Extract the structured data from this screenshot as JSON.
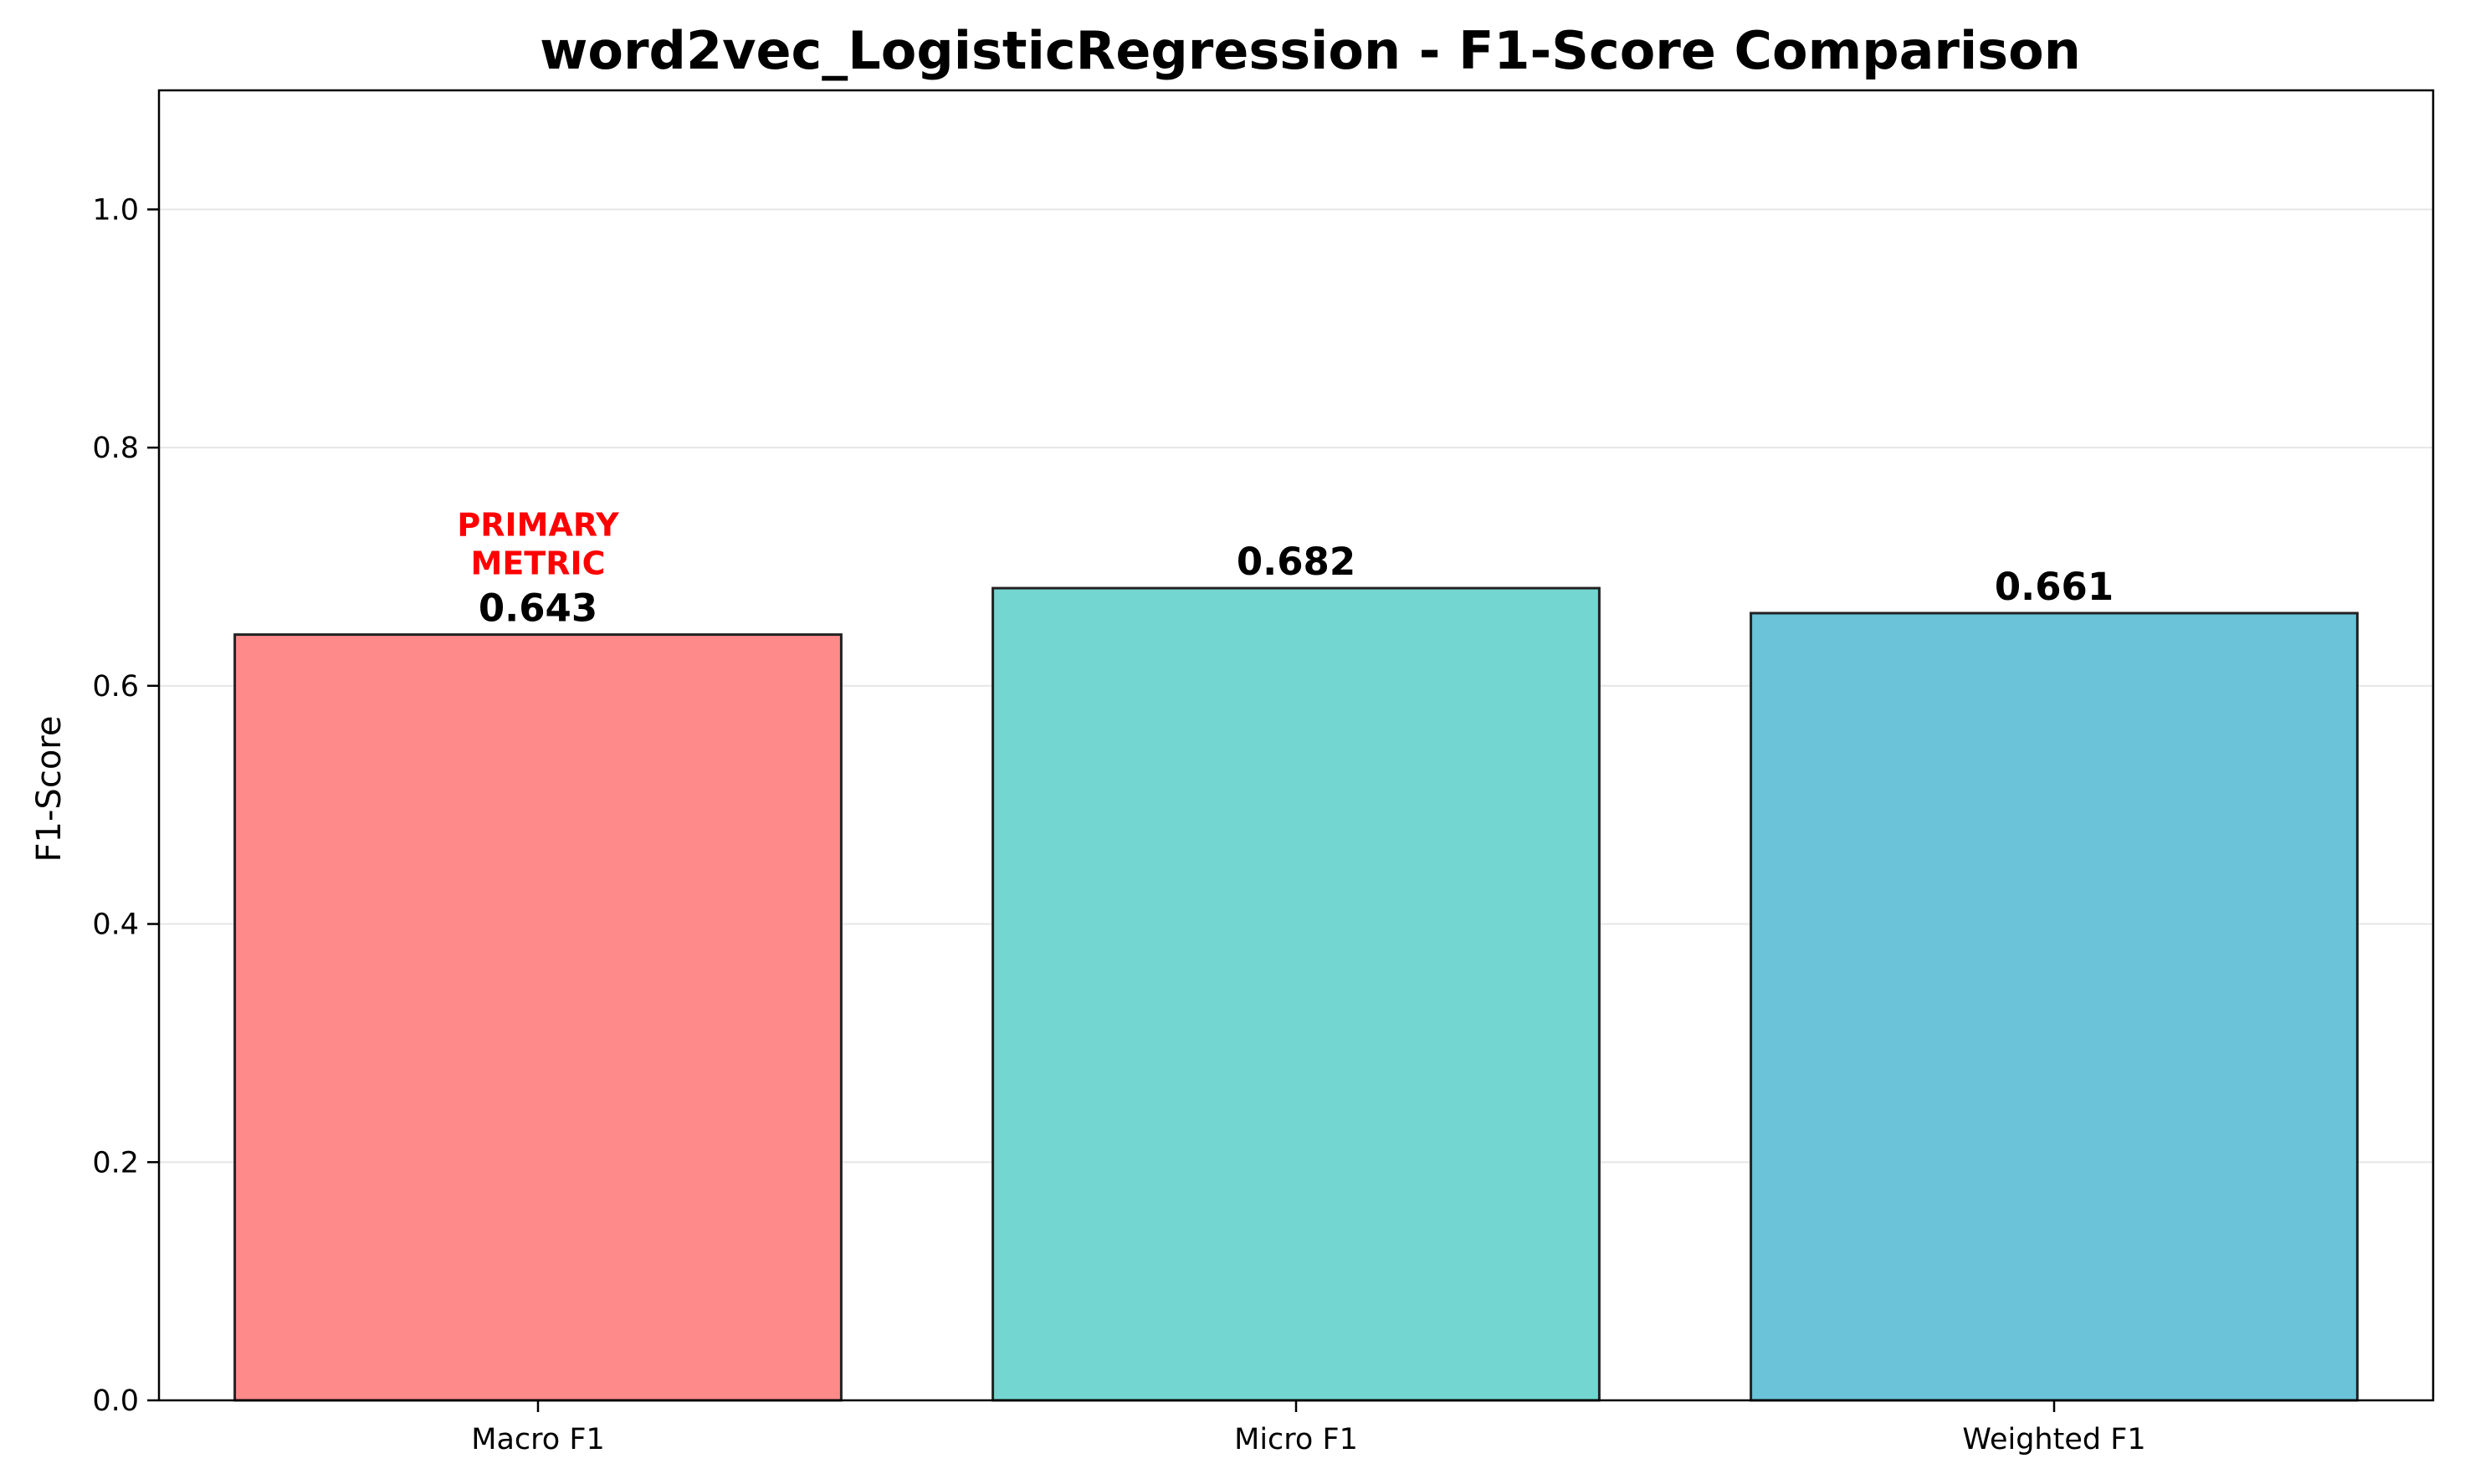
{
  "chart_data": {
    "type": "bar",
    "title": "word2vec_LogisticRegression - F1-Score Comparison",
    "xlabel": "",
    "ylabel": "F1-Score",
    "categories": [
      "Macro F1",
      "Micro F1",
      "Weighted F1"
    ],
    "values": [
      0.643,
      0.682,
      0.661
    ],
    "value_labels": [
      "0.643",
      "0.682",
      "0.661"
    ],
    "colors": [
      "#ff8a8a",
      "#74d6d1",
      "#6ac3d9"
    ],
    "edge_color": "#222222",
    "ylim": [
      0,
      1.1
    ],
    "yticks": [
      0.0,
      0.2,
      0.4,
      0.6,
      0.8,
      1.0
    ],
    "ytick_labels": [
      "0.0",
      "0.2",
      "0.4",
      "0.6",
      "0.8",
      "1.0"
    ],
    "grid": "y",
    "grid_color": "#e6e6e6",
    "annotation": {
      "category_index": 0,
      "lines": [
        "PRIMARY",
        "METRIC"
      ],
      "color": "#ff0000"
    }
  }
}
